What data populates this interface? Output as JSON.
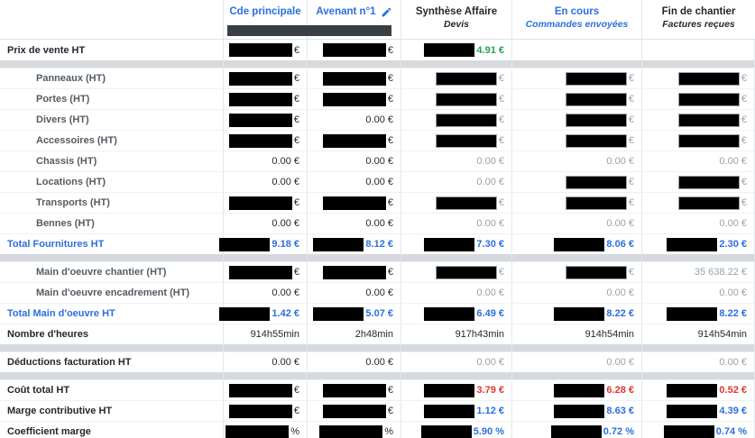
{
  "colors": {
    "accent_blue": "#2b6fdf",
    "positive_green": "#27a152",
    "negative_red": "#e0352f",
    "muted_gray": "#9aa1a8",
    "sub_label_gray": "#565b63",
    "dark_text": "#24282c",
    "separator_band": "#d6d9dd",
    "redaction_black": "#000000",
    "header_redaction_gray": "#3a3f45"
  },
  "header": {
    "columns": [
      {
        "title": "Cde principale",
        "subtitle": "",
        "color": "blue"
      },
      {
        "title": "Avenant n°1",
        "subtitle": "",
        "color": "blue",
        "edit_icon": "pencil-icon"
      },
      {
        "title": "Synthèse Affaire",
        "subtitle": "Devis",
        "color": "dark"
      },
      {
        "title": "En cours",
        "subtitle": "Commandes envoyées",
        "color": "blue"
      },
      {
        "title": "Fin de chantier",
        "subtitle": "Factures reçues",
        "color": "dark"
      }
    ],
    "redacted_bar_under_columns": "Cde principale / Avenant n°1"
  },
  "table": {
    "rows": [
      {
        "label": "Prix de vente HT",
        "style": "main",
        "cells": [
          {
            "box": "full",
            "v": "€",
            "c": "dark"
          },
          {
            "box": "full",
            "v": "€",
            "c": "dark"
          },
          {
            "box": "sm",
            "v": "4.91 €",
            "c": "green"
          },
          {},
          {}
        ]
      },
      {
        "sep": true
      },
      {
        "label": "Panneaux (HT)",
        "style": "sub",
        "cells": [
          {
            "box": "full",
            "v": "€",
            "c": "dark"
          },
          {
            "box": "full",
            "v": "€",
            "c": "dark"
          },
          {
            "box": "out",
            "v": "€",
            "c": "gray"
          },
          {
            "box": "out",
            "v": "€",
            "c": "gray"
          },
          {
            "box": "out",
            "v": "€",
            "c": "gray"
          }
        ]
      },
      {
        "label": "Portes (HT)",
        "style": "sub",
        "cells": [
          {
            "box": "full",
            "v": "€",
            "c": "dark"
          },
          {
            "box": "full",
            "v": "€",
            "c": "dark"
          },
          {
            "box": "out",
            "v": "€",
            "c": "gray"
          },
          {
            "box": "out",
            "v": "€",
            "c": "gray"
          },
          {
            "box": "out",
            "v": "€",
            "c": "gray"
          }
        ]
      },
      {
        "label": "Divers (HT)",
        "style": "sub",
        "cells": [
          {
            "box": "full",
            "v": "€",
            "c": "dark"
          },
          {
            "v": "0.00 €",
            "c": "dark"
          },
          {
            "box": "out",
            "v": "€",
            "c": "gray"
          },
          {
            "box": "out",
            "v": "€",
            "c": "gray"
          },
          {
            "box": "out",
            "v": "€",
            "c": "gray"
          }
        ]
      },
      {
        "label": "Accessoires (HT)",
        "style": "sub",
        "cells": [
          {
            "box": "full",
            "v": "€",
            "c": "dark"
          },
          {
            "box": "full",
            "v": "€",
            "c": "dark"
          },
          {
            "box": "out",
            "v": "€",
            "c": "gray"
          },
          {
            "box": "out",
            "v": "€",
            "c": "gray"
          },
          {
            "box": "out",
            "v": "€",
            "c": "gray"
          }
        ]
      },
      {
        "label": "Chassis (HT)",
        "style": "sub",
        "cells": [
          {
            "v": "0.00 €",
            "c": "dark"
          },
          {
            "v": "0.00 €",
            "c": "dark"
          },
          {
            "v": "0.00 €",
            "c": "gray"
          },
          {
            "v": "0.00 €",
            "c": "gray"
          },
          {
            "v": "0.00 €",
            "c": "gray"
          }
        ]
      },
      {
        "label": "Locations (HT)",
        "style": "sub",
        "cells": [
          {
            "v": "0.00 €",
            "c": "dark"
          },
          {
            "v": "0.00 €",
            "c": "dark"
          },
          {
            "v": "0.00 €",
            "c": "gray"
          },
          {
            "box": "out",
            "v": "€",
            "c": "gray"
          },
          {
            "box": "out",
            "v": "€",
            "c": "gray"
          }
        ]
      },
      {
        "label": "Transports (HT)",
        "style": "sub",
        "cells": [
          {
            "box": "full",
            "v": "€",
            "c": "dark"
          },
          {
            "box": "full",
            "v": "€",
            "c": "dark"
          },
          {
            "box": "out",
            "v": "€",
            "c": "gray"
          },
          {
            "box": "out",
            "v": "€",
            "c": "gray"
          },
          {
            "box": "out",
            "v": "€",
            "c": "gray"
          }
        ]
      },
      {
        "label": "Bennes (HT)",
        "style": "sub",
        "cells": [
          {
            "v": "0.00 €",
            "c": "dark"
          },
          {
            "v": "0.00 €",
            "c": "dark"
          },
          {
            "v": "0.00 €",
            "c": "gray"
          },
          {
            "v": "0.00 €",
            "c": "gray"
          },
          {
            "v": "0.00 €",
            "c": "gray"
          }
        ]
      },
      {
        "label": "Total Fournitures HT",
        "style": "total",
        "cells": [
          {
            "box": "sm",
            "v": "9.18 €",
            "c": "blue"
          },
          {
            "box": "sm",
            "v": "8.12 €",
            "c": "blue"
          },
          {
            "box": "sm",
            "v": "7.30 €",
            "c": "blue"
          },
          {
            "box": "sm",
            "v": "8.06 €",
            "c": "blue"
          },
          {
            "box": "sm",
            "v": "2.30 €",
            "c": "blue"
          }
        ]
      },
      {
        "sep": true
      },
      {
        "label": "Main d'oeuvre chantier (HT)",
        "style": "sub",
        "cells": [
          {
            "box": "full",
            "v": "€",
            "c": "dark"
          },
          {
            "box": "full",
            "v": "€",
            "c": "dark"
          },
          {
            "box": "out",
            "v": "€",
            "c": "gray"
          },
          {
            "box": "out",
            "v": "€",
            "c": "gray"
          },
          {
            "v": "35 638.22 €",
            "c": "gray"
          }
        ]
      },
      {
        "label": "Main d'oeuvre encadrement (HT)",
        "style": "sub",
        "cells": [
          {
            "v": "0.00 €",
            "c": "dark"
          },
          {
            "v": "0.00 €",
            "c": "dark"
          },
          {
            "v": "0.00 €",
            "c": "gray"
          },
          {
            "v": "0.00 €",
            "c": "gray"
          },
          {
            "v": "0.00 €",
            "c": "gray"
          }
        ]
      },
      {
        "label": "Total Main d'oeuvre HT",
        "style": "total",
        "cells": [
          {
            "box": "sm",
            "v": "1.42 €",
            "c": "blue"
          },
          {
            "box": "sm",
            "v": "5.07 €",
            "c": "blue"
          },
          {
            "box": "sm",
            "v": "6.49 €",
            "c": "blue"
          },
          {
            "box": "sm",
            "v": "8.22 €",
            "c": "blue"
          },
          {
            "box": "sm",
            "v": "8.22 €",
            "c": "blue"
          }
        ]
      },
      {
        "label": "Nombre d'heures",
        "style": "main",
        "cells": [
          {
            "v": "914h55min",
            "c": "dark"
          },
          {
            "v": "2h48min",
            "c": "dark"
          },
          {
            "v": "917h43min",
            "c": "dark"
          },
          {
            "v": "914h54min",
            "c": "dark"
          },
          {
            "v": "914h54min",
            "c": "dark"
          }
        ]
      },
      {
        "sep": true
      },
      {
        "label": "Déductions facturation HT",
        "style": "main",
        "cells": [
          {
            "v": "0.00 €",
            "c": "dark"
          },
          {
            "v": "0.00 €",
            "c": "dark"
          },
          {
            "v": "0.00 €",
            "c": "gray"
          },
          {
            "v": "0.00 €",
            "c": "gray"
          },
          {
            "v": "0.00 €",
            "c": "gray"
          }
        ]
      },
      {
        "sep": true
      },
      {
        "label": "Coût total HT",
        "style": "main",
        "cells": [
          {
            "box": "full",
            "v": "€",
            "c": "dark"
          },
          {
            "box": "full",
            "v": "€",
            "c": "dark"
          },
          {
            "box": "sm",
            "v": "3.79 €",
            "c": "red"
          },
          {
            "box": "sm",
            "v": "6.28 €",
            "c": "red"
          },
          {
            "box": "sm",
            "v": "0.52 €",
            "c": "red"
          }
        ]
      },
      {
        "label": "Marge contributive HT",
        "style": "main",
        "cells": [
          {
            "box": "full",
            "v": "€",
            "c": "dark"
          },
          {
            "box": "full",
            "v": "€",
            "c": "dark"
          },
          {
            "box": "sm",
            "v": "1.12 €",
            "c": "blue"
          },
          {
            "box": "sm",
            "v": "8.63 €",
            "c": "blue"
          },
          {
            "box": "sm",
            "v": "4.39 €",
            "c": "blue"
          }
        ]
      },
      {
        "label": "Coefficient marge",
        "style": "main",
        "cells": [
          {
            "box": "full",
            "v": "%",
            "c": "dark"
          },
          {
            "box": "full",
            "v": "%",
            "c": "dark"
          },
          {
            "box": "sm",
            "v": "5.90 %",
            "c": "blue"
          },
          {
            "box": "sm",
            "v": "0.72 %",
            "c": "blue"
          },
          {
            "box": "sm",
            "v": "0.74 %",
            "c": "blue"
          }
        ]
      }
    ]
  }
}
